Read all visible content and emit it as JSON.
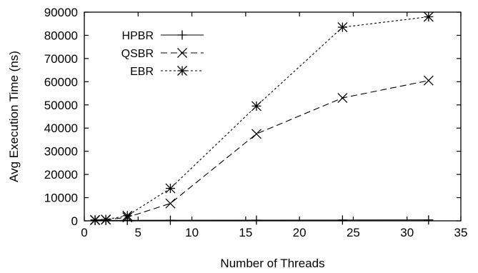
{
  "chart_data": {
    "type": "line",
    "title": "",
    "xlabel": "Number of Threads",
    "ylabel": "Avg Execution Time (ns)",
    "xlim": [
      0,
      35
    ],
    "ylim": [
      0,
      90000
    ],
    "x_ticks": [
      "0",
      "5",
      "10",
      "15",
      "20",
      "25",
      "30",
      "35"
    ],
    "y_ticks": [
      "0",
      "10000",
      "20000",
      "30000",
      "40000",
      "50000",
      "60000",
      "70000",
      "80000",
      "90000"
    ],
    "grid": false,
    "legend_position": "top-left",
    "series": [
      {
        "name": "HPBR",
        "marker": "plus",
        "line_style": "solid",
        "x": [
          1,
          2,
          4,
          8,
          16,
          24,
          32
        ],
        "y": [
          150,
          180,
          200,
          250,
          300,
          350,
          400
        ]
      },
      {
        "name": "QSBR",
        "marker": "cross",
        "line_style": "dashed",
        "x": [
          1,
          2,
          4,
          8,
          16,
          24,
          32
        ],
        "y": [
          300,
          500,
          1500,
          7500,
          37500,
          53000,
          60500
        ]
      },
      {
        "name": "EBR",
        "marker": "asterisk",
        "line_style": "dotted",
        "x": [
          1,
          2,
          4,
          8,
          16,
          24,
          32
        ],
        "y": [
          400,
          600,
          2200,
          14000,
          49500,
          83500,
          88000
        ]
      }
    ]
  }
}
